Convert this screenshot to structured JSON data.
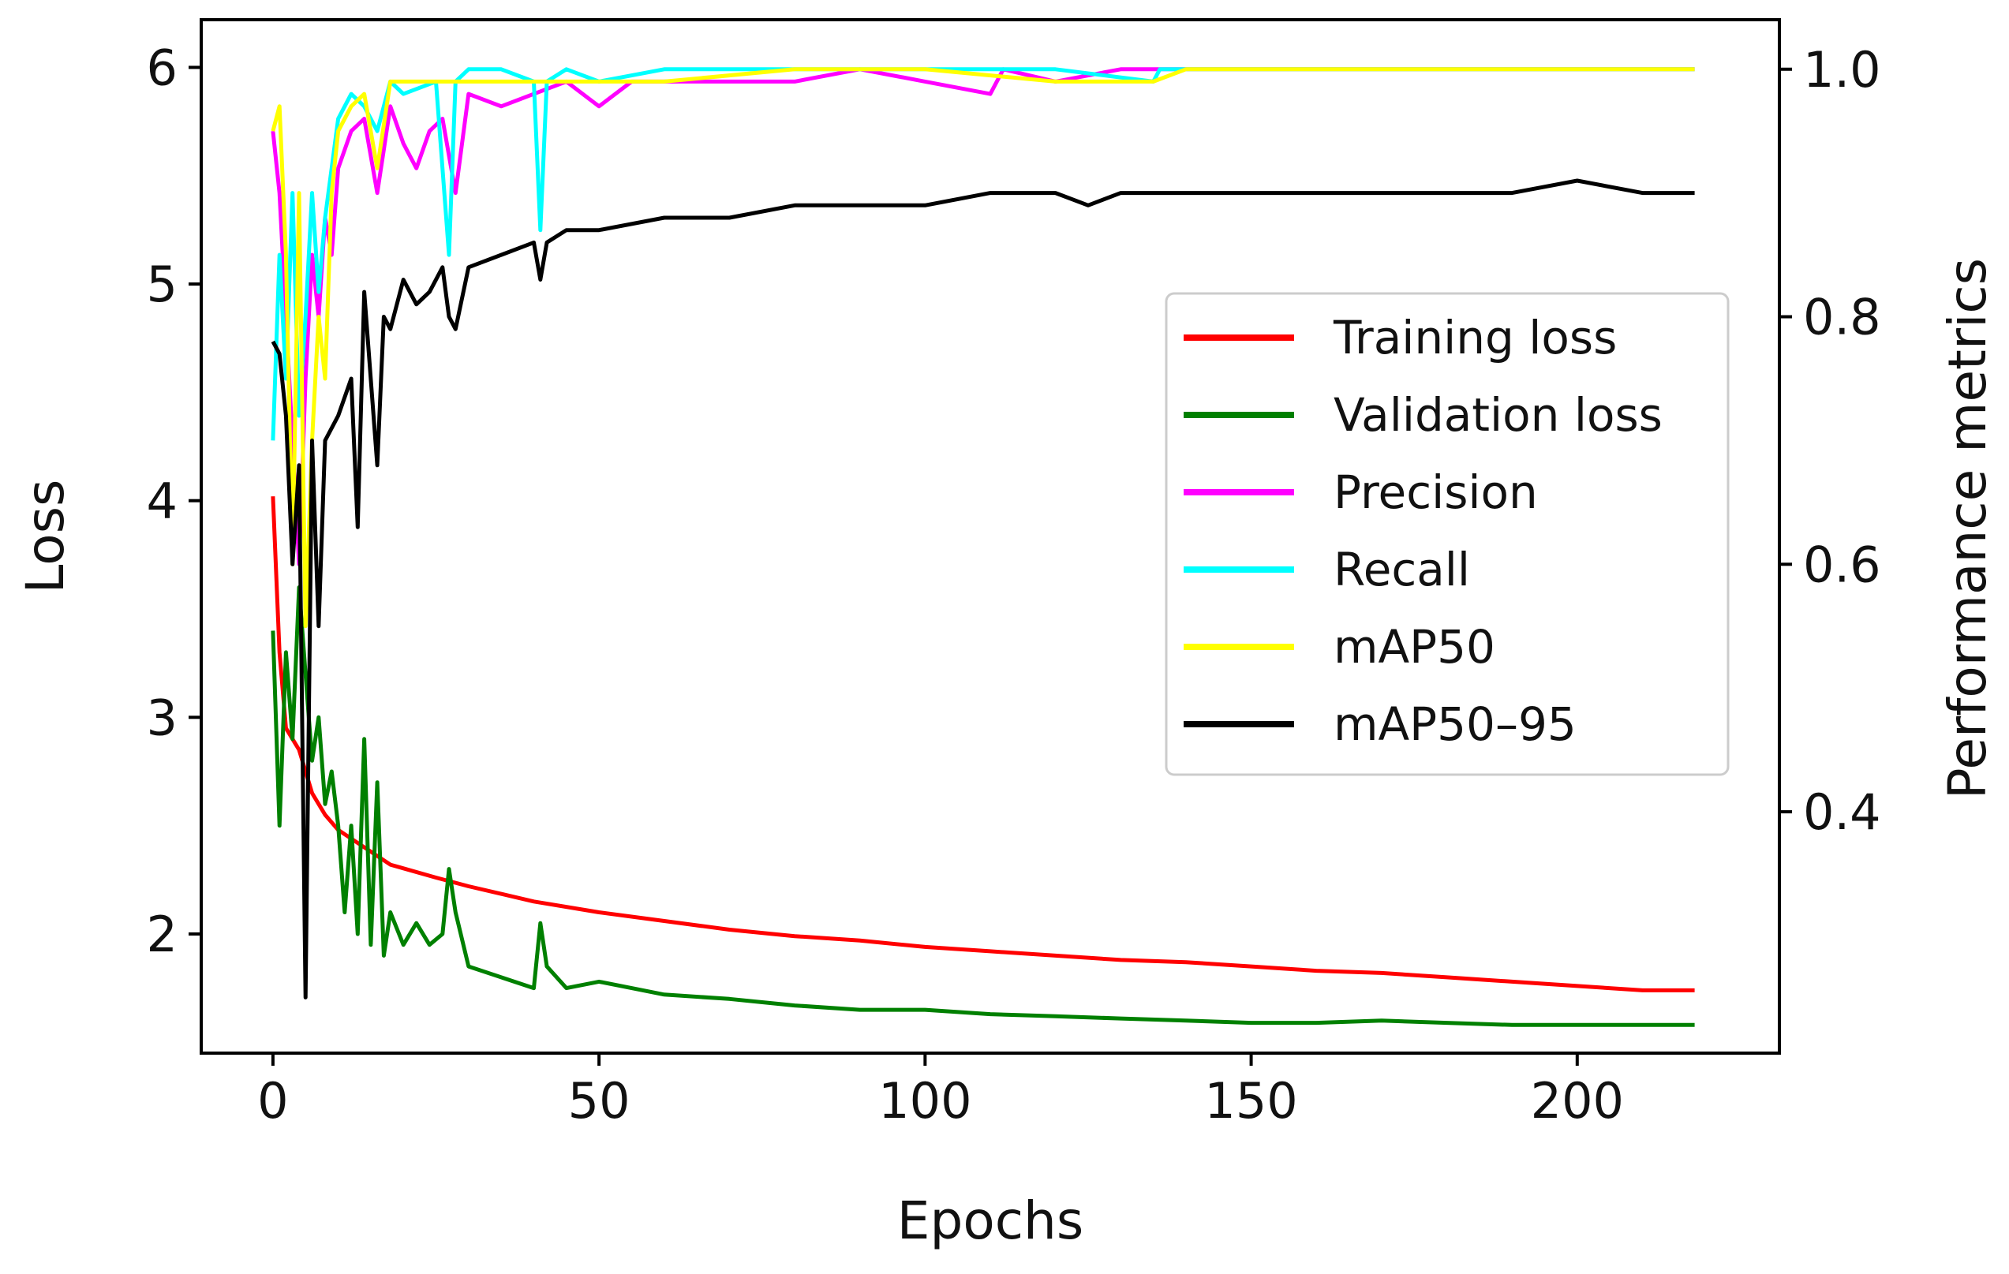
{
  "chart_data": {
    "type": "line",
    "xlabel": "Epochs",
    "ylabel_left": "Loss",
    "ylabel_right": "Performance metrics",
    "xlim": [
      -11,
      231
    ],
    "ylim_left": [
      1.45,
      6.22
    ],
    "ylim_right": [
      0.205,
      1.04
    ],
    "x_ticks": [
      0,
      50,
      100,
      150,
      200
    ],
    "y_ticks_left": [
      2,
      3,
      4,
      5,
      6
    ],
    "y_ticks_right": [
      0.4,
      0.6,
      0.8,
      1.0
    ],
    "legend_position": "center-right",
    "series": [
      {
        "name": "Training loss",
        "axis": "left",
        "color": "#ff0000",
        "points": [
          [
            0,
            4.02
          ],
          [
            1,
            3.3
          ],
          [
            2,
            2.95
          ],
          [
            3,
            2.9
          ],
          [
            4,
            2.85
          ],
          [
            6,
            2.65
          ],
          [
            8,
            2.55
          ],
          [
            10,
            2.48
          ],
          [
            14,
            2.4
          ],
          [
            18,
            2.32
          ],
          [
            25,
            2.26
          ],
          [
            30,
            2.22
          ],
          [
            40,
            2.15
          ],
          [
            50,
            2.1
          ],
          [
            60,
            2.06
          ],
          [
            70,
            2.02
          ],
          [
            80,
            1.99
          ],
          [
            90,
            1.97
          ],
          [
            100,
            1.94
          ],
          [
            110,
            1.92
          ],
          [
            120,
            1.9
          ],
          [
            130,
            1.88
          ],
          [
            140,
            1.87
          ],
          [
            150,
            1.85
          ],
          [
            160,
            1.83
          ],
          [
            170,
            1.82
          ],
          [
            180,
            1.8
          ],
          [
            190,
            1.78
          ],
          [
            200,
            1.76
          ],
          [
            210,
            1.74
          ],
          [
            218,
            1.74
          ]
        ]
      },
      {
        "name": "Validation loss",
        "axis": "left",
        "color": "#008000",
        "points": [
          [
            0,
            3.4
          ],
          [
            1,
            2.5
          ],
          [
            2,
            3.3
          ],
          [
            3,
            2.9
          ],
          [
            4,
            3.6
          ],
          [
            5,
            3.2
          ],
          [
            6,
            2.8
          ],
          [
            7,
            3.0
          ],
          [
            8,
            2.6
          ],
          [
            9,
            2.75
          ],
          [
            10,
            2.5
          ],
          [
            11,
            2.1
          ],
          [
            12,
            2.5
          ],
          [
            13,
            2.0
          ],
          [
            14,
            2.9
          ],
          [
            15,
            1.95
          ],
          [
            16,
            2.7
          ],
          [
            17,
            1.9
          ],
          [
            18,
            2.1
          ],
          [
            20,
            1.95
          ],
          [
            22,
            2.05
          ],
          [
            24,
            1.95
          ],
          [
            26,
            2.0
          ],
          [
            27,
            2.3
          ],
          [
            28,
            2.1
          ],
          [
            30,
            1.85
          ],
          [
            35,
            1.8
          ],
          [
            40,
            1.75
          ],
          [
            41,
            2.05
          ],
          [
            42,
            1.85
          ],
          [
            45,
            1.75
          ],
          [
            50,
            1.78
          ],
          [
            55,
            1.75
          ],
          [
            60,
            1.72
          ],
          [
            70,
            1.7
          ],
          [
            80,
            1.67
          ],
          [
            90,
            1.65
          ],
          [
            100,
            1.65
          ],
          [
            110,
            1.63
          ],
          [
            120,
            1.62
          ],
          [
            130,
            1.61
          ],
          [
            140,
            1.6
          ],
          [
            150,
            1.59
          ],
          [
            160,
            1.59
          ],
          [
            170,
            1.6
          ],
          [
            180,
            1.59
          ],
          [
            190,
            1.58
          ],
          [
            200,
            1.58
          ],
          [
            210,
            1.58
          ],
          [
            218,
            1.58
          ]
        ]
      },
      {
        "name": "Precision",
        "axis": "right",
        "color": "#ff00ff",
        "points": [
          [
            0,
            0.95
          ],
          [
            1,
            0.9
          ],
          [
            2,
            0.8
          ],
          [
            3,
            0.7
          ],
          [
            4,
            0.6
          ],
          [
            5,
            0.75
          ],
          [
            6,
            0.85
          ],
          [
            7,
            0.8
          ],
          [
            8,
            0.88
          ],
          [
            9,
            0.85
          ],
          [
            10,
            0.92
          ],
          [
            12,
            0.95
          ],
          [
            14,
            0.96
          ],
          [
            16,
            0.9
          ],
          [
            18,
            0.97
          ],
          [
            20,
            0.94
          ],
          [
            22,
            0.92
          ],
          [
            24,
            0.95
          ],
          [
            26,
            0.96
          ],
          [
            28,
            0.9
          ],
          [
            30,
            0.98
          ],
          [
            35,
            0.97
          ],
          [
            40,
            0.98
          ],
          [
            45,
            0.99
          ],
          [
            50,
            0.97
          ],
          [
            55,
            0.99
          ],
          [
            60,
            0.99
          ],
          [
            70,
            0.99
          ],
          [
            80,
            0.99
          ],
          [
            90,
            1.0
          ],
          [
            100,
            0.99
          ],
          [
            110,
            0.98
          ],
          [
            112,
            1.0
          ],
          [
            120,
            0.99
          ],
          [
            130,
            1.0
          ],
          [
            140,
            1.0
          ],
          [
            160,
            1.0
          ],
          [
            180,
            1.0
          ],
          [
            200,
            1.0
          ],
          [
            218,
            1.0
          ]
        ]
      },
      {
        "name": "Recall",
        "axis": "right",
        "color": "#00ffff",
        "points": [
          [
            0,
            0.7
          ],
          [
            1,
            0.85
          ],
          [
            2,
            0.75
          ],
          [
            3,
            0.9
          ],
          [
            4,
            0.72
          ],
          [
            5,
            0.8
          ],
          [
            6,
            0.9
          ],
          [
            7,
            0.82
          ],
          [
            8,
            0.88
          ],
          [
            10,
            0.96
          ],
          [
            12,
            0.98
          ],
          [
            14,
            0.97
          ],
          [
            16,
            0.95
          ],
          [
            18,
            0.99
          ],
          [
            20,
            0.98
          ],
          [
            25,
            0.99
          ],
          [
            27,
            0.85
          ],
          [
            28,
            0.99
          ],
          [
            30,
            1.0
          ],
          [
            35,
            1.0
          ],
          [
            40,
            0.99
          ],
          [
            41,
            0.87
          ],
          [
            42,
            0.99
          ],
          [
            45,
            1.0
          ],
          [
            50,
            0.99
          ],
          [
            60,
            1.0
          ],
          [
            80,
            1.0
          ],
          [
            100,
            1.0
          ],
          [
            120,
            1.0
          ],
          [
            135,
            0.99
          ],
          [
            136,
            1.0
          ],
          [
            160,
            1.0
          ],
          [
            180,
            1.0
          ],
          [
            200,
            1.0
          ],
          [
            218,
            1.0
          ]
        ]
      },
      {
        "name": "mAP50",
        "axis": "right",
        "color": "#ffff00",
        "points": [
          [
            0,
            0.95
          ],
          [
            1,
            0.97
          ],
          [
            2,
            0.85
          ],
          [
            3,
            0.6
          ],
          [
            4,
            0.9
          ],
          [
            5,
            0.55
          ],
          [
            6,
            0.7
          ],
          [
            7,
            0.8
          ],
          [
            8,
            0.75
          ],
          [
            9,
            0.9
          ],
          [
            10,
            0.95
          ],
          [
            12,
            0.97
          ],
          [
            14,
            0.98
          ],
          [
            16,
            0.92
          ],
          [
            18,
            0.99
          ],
          [
            20,
            0.99
          ],
          [
            25,
            0.99
          ],
          [
            28,
            0.99
          ],
          [
            30,
            0.99
          ],
          [
            40,
            0.99
          ],
          [
            50,
            0.99
          ],
          [
            60,
            0.99
          ],
          [
            80,
            1.0
          ],
          [
            100,
            1.0
          ],
          [
            120,
            0.99
          ],
          [
            135,
            0.99
          ],
          [
            140,
            1.0
          ],
          [
            160,
            1.0
          ],
          [
            180,
            1.0
          ],
          [
            200,
            1.0
          ],
          [
            218,
            1.0
          ]
        ]
      },
      {
        "name": "mAP50–95",
        "axis": "right",
        "color": "#000000",
        "points": [
          [
            0,
            0.78
          ],
          [
            1,
            0.77
          ],
          [
            2,
            0.72
          ],
          [
            3,
            0.6
          ],
          [
            4,
            0.68
          ],
          [
            5,
            0.25
          ],
          [
            6,
            0.7
          ],
          [
            7,
            0.55
          ],
          [
            8,
            0.7
          ],
          [
            10,
            0.72
          ],
          [
            12,
            0.75
          ],
          [
            13,
            0.63
          ],
          [
            14,
            0.82
          ],
          [
            16,
            0.68
          ],
          [
            17,
            0.8
          ],
          [
            18,
            0.79
          ],
          [
            20,
            0.83
          ],
          [
            22,
            0.81
          ],
          [
            24,
            0.82
          ],
          [
            26,
            0.84
          ],
          [
            27,
            0.8
          ],
          [
            28,
            0.79
          ],
          [
            30,
            0.84
          ],
          [
            35,
            0.85
          ],
          [
            40,
            0.86
          ],
          [
            41,
            0.83
          ],
          [
            42,
            0.86
          ],
          [
            45,
            0.87
          ],
          [
            50,
            0.87
          ],
          [
            60,
            0.88
          ],
          [
            70,
            0.88
          ],
          [
            80,
            0.89
          ],
          [
            90,
            0.89
          ],
          [
            100,
            0.89
          ],
          [
            110,
            0.9
          ],
          [
            120,
            0.9
          ],
          [
            125,
            0.89
          ],
          [
            130,
            0.9
          ],
          [
            140,
            0.9
          ],
          [
            150,
            0.9
          ],
          [
            160,
            0.9
          ],
          [
            170,
            0.9
          ],
          [
            180,
            0.9
          ],
          [
            190,
            0.9
          ],
          [
            200,
            0.91
          ],
          [
            210,
            0.9
          ],
          [
            218,
            0.9
          ]
        ]
      }
    ]
  }
}
